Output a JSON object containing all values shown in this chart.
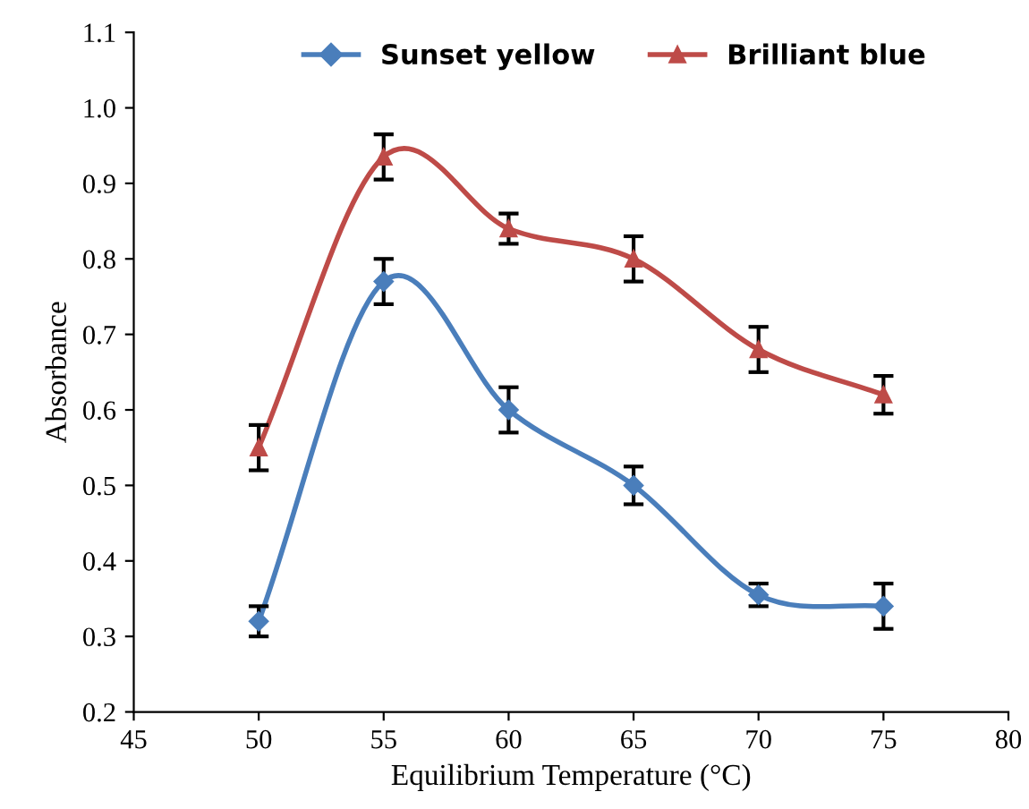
{
  "chart_data": {
    "type": "line",
    "xlabel": "Equilibrium Temperature (°C)",
    "ylabel": "Absorbance",
    "x": [
      50,
      55,
      60,
      65,
      70,
      75
    ],
    "series": [
      {
        "name": "Sunset yellow",
        "color": "#4a7ebb",
        "marker": "diamond",
        "values": [
          0.32,
          0.77,
          0.6,
          0.5,
          0.355,
          0.34
        ],
        "errors": [
          0.02,
          0.03,
          0.03,
          0.025,
          0.015,
          0.03
        ]
      },
      {
        "name": "Brilliant blue",
        "color": "#be4b48",
        "marker": "triangle",
        "values": [
          0.55,
          0.935,
          0.84,
          0.8,
          0.68,
          0.62
        ],
        "errors": [
          0.03,
          0.03,
          0.02,
          0.03,
          0.03,
          0.025
        ]
      }
    ],
    "xlim": [
      45,
      80
    ],
    "xticks": [
      45,
      50,
      55,
      60,
      65,
      70,
      75,
      80
    ],
    "ylim": [
      0.2,
      1.1
    ],
    "yticks": [
      {
        "value": 0.2,
        "label": "0.2"
      },
      {
        "value": 0.3,
        "label": "0.3"
      },
      {
        "value": 0.4,
        "label": "0.4"
      },
      {
        "value": 0.5,
        "label": "0.5"
      },
      {
        "value": 0.6,
        "label": "0.6"
      },
      {
        "value": 0.7,
        "label": "0.7"
      },
      {
        "value": 0.8,
        "label": "0.8"
      },
      {
        "value": 0.9,
        "label": "0.9"
      },
      {
        "value": 1.0,
        "label": "1.0"
      },
      {
        "value": 1.1,
        "label": "1.1"
      }
    ],
    "grid": false,
    "legend": "top",
    "line_style": "solid"
  }
}
